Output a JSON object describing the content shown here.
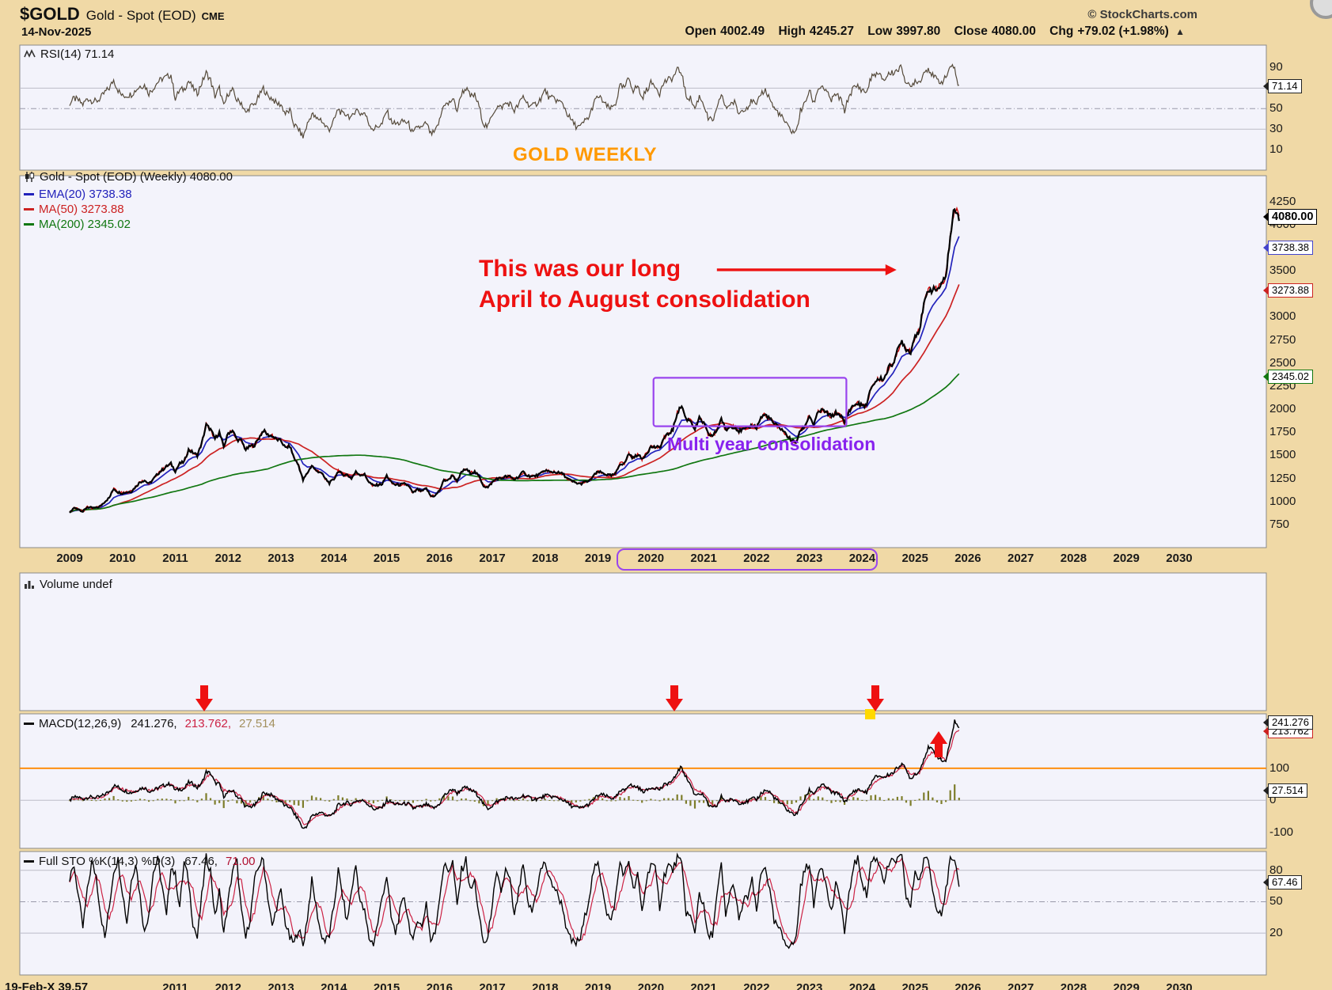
{
  "header": {
    "symbol": "$GOLD",
    "name": "Gold - Spot (EOD)",
    "exchange": "CME",
    "credit": "© StockCharts.com",
    "date": "14-Nov-2025",
    "up_arrow": "▲",
    "quote": {
      "open_label": "Open",
      "open": "4002.49",
      "high_label": "High",
      "high": "4245.27",
      "low_label": "Low",
      "low": "3997.80",
      "close_label": "Close",
      "close": "4080.00",
      "chg_label": "Chg",
      "chg": "+79.02 (+1.98%)"
    }
  },
  "banner": "GOLD WEEKLY",
  "legends": {
    "rsi": "RSI(14) 71.14",
    "main_title": "Gold - Spot (EOD) (Weekly) 4080.00",
    "ema": "EMA(20) 3738.38",
    "ma50": "MA(50) 3273.88",
    "ma200": "MA(200) 2345.02",
    "volume": "Volume undef",
    "macd_name": "MACD(12,26,9)",
    "macd_v1": "241.276,",
    "macd_v2": "213.762,",
    "macd_v3": "27.514",
    "sto_name": "Full STO %K(14,3) %D(3)",
    "sto_v1": "67.46,",
    "sto_v2": "71.00"
  },
  "bottom_fragment": "19-Feb-X 39.57",
  "colors": {
    "background": "#f0d9a6",
    "panel": "#f3f3fb",
    "border": "#8a8a8a",
    "grid": "#bcbcc8",
    "rsi_line": "#554a3a",
    "price": "#000000",
    "price_down": "#cc0000",
    "ema20": "#2222bb",
    "ma50": "#cc2222",
    "ma200": "#117711",
    "macd_line": "#000000",
    "macd_signal": "#cc2244",
    "macd_hist": "#7d7d2a",
    "sto_k": "#000000",
    "sto_d": "#cc2244",
    "orange_line": "#ff8800",
    "annotation_red": "#ee1111",
    "annotation_purple": "#9944ee",
    "banner_orange": "#ff9900",
    "yellow_mark": "#ffd900"
  },
  "chart_data": {
    "type": "line",
    "title": "Gold - Spot (EOD) (Weekly) 4080.00",
    "x_start": 2009.0,
    "x_step_months": 1,
    "x_axis_years": [
      "2009",
      "2010",
      "2011",
      "2012",
      "2013",
      "2014",
      "2015",
      "2016",
      "2017",
      "2018",
      "2019",
      "2020",
      "2021",
      "2022",
      "2023",
      "2024",
      "2025",
      "2026",
      "2027",
      "2028",
      "2029",
      "2030"
    ],
    "bottom_axis_years": [
      "2011",
      "2012",
      "2013",
      "2014",
      "2015",
      "2016",
      "2017",
      "2018",
      "2019",
      "2020",
      "2021",
      "2022",
      "2023",
      "2024",
      "2025",
      "2026",
      "2027",
      "2028",
      "2029",
      "2030"
    ],
    "panels": {
      "rsi": {
        "type": "line",
        "name": "RSI(14)",
        "current": 71.14,
        "ylim": [
          -10,
          112
        ],
        "gridlines": [
          {
            "v": 30
          },
          {
            "v": 50,
            "dash": true
          },
          {
            "v": 70
          }
        ],
        "right_labels": [
          {
            "t": "90",
            "v": 90
          },
          {
            "t": "71.14",
            "v": 71.14,
            "tag": "black"
          },
          {
            "t": "50",
            "v": 50
          },
          {
            "t": "30",
            "v": 30
          },
          {
            "t": "10",
            "v": 10
          }
        ],
        "values": [
          55,
          60,
          58,
          54,
          60,
          58,
          57,
          60,
          66,
          70,
          78,
          68,
          62,
          63,
          64,
          68,
          72,
          73,
          65,
          70,
          76,
          79,
          81,
          83,
          60,
          68,
          69,
          77,
          70,
          65,
          75,
          85,
          78,
          62,
          70,
          52,
          65,
          68,
          58,
          56,
          45,
          52,
          54,
          62,
          70,
          62,
          60,
          55,
          54,
          45,
          48,
          34,
          30,
          22,
          35,
          45,
          40,
          40,
          33,
          30,
          38,
          50,
          44,
          45,
          40,
          50,
          45,
          46,
          35,
          30,
          33,
          35,
          48,
          38,
          35,
          36,
          38,
          35,
          25,
          33,
          31,
          36,
          25,
          27,
          38,
          55,
          54,
          60,
          48,
          65,
          70,
          62,
          63,
          52,
          35,
          32,
          45,
          52,
          51,
          55,
          55,
          48,
          54,
          62,
          55,
          52,
          55,
          60,
          68,
          60,
          60,
          57,
          55,
          45,
          38,
          33,
          32,
          38,
          42,
          55,
          62,
          58,
          52,
          50,
          55,
          72,
          70,
          80,
          68,
          72,
          60,
          68,
          75,
          73,
          65,
          76,
          78,
          80,
          88,
          85,
          62,
          60,
          50,
          62,
          55,
          40,
          38,
          48,
          65,
          50,
          55,
          56,
          45,
          50,
          52,
          58,
          52,
          65,
          68,
          60,
          50,
          46,
          40,
          33,
          28,
          27,
          48,
          55,
          68,
          55,
          70,
          72,
          65,
          58,
          64,
          60,
          48,
          62,
          70,
          72,
          68,
          66,
          80,
          84,
          82,
          78,
          84,
          85,
          88,
          90,
          75,
          70,
          78,
          76,
          85,
          90,
          82,
          78,
          76,
          80,
          92,
          88,
          71
        ]
      },
      "price": {
        "type": "candlestick",
        "name": "Gold - Spot (EOD) (Weekly)",
        "close_current": 4080.0,
        "ylim": [
          500,
          4530
        ],
        "close": [
          880,
          930,
          920,
          890,
          940,
          930,
          930,
          950,
          1000,
          1040,
          1140,
          1100,
          1090,
          1100,
          1110,
          1160,
          1210,
          1230,
          1190,
          1240,
          1300,
          1340,
          1380,
          1410,
          1330,
          1410,
          1430,
          1560,
          1530,
          1500,
          1630,
          1830,
          1780,
          1680,
          1750,
          1590,
          1740,
          1770,
          1670,
          1660,
          1560,
          1600,
          1610,
          1690,
          1770,
          1720,
          1710,
          1670,
          1660,
          1580,
          1600,
          1470,
          1390,
          1230,
          1310,
          1390,
          1330,
          1320,
          1250,
          1200,
          1240,
          1330,
          1290,
          1290,
          1250,
          1320,
          1290,
          1290,
          1210,
          1170,
          1180,
          1190,
          1280,
          1210,
          1180,
          1180,
          1190,
          1170,
          1090,
          1130,
          1110,
          1140,
          1060,
          1060,
          1120,
          1230,
          1230,
          1290,
          1210,
          1320,
          1350,
          1310,
          1320,
          1270,
          1170,
          1150,
          1210,
          1250,
          1250,
          1270,
          1270,
          1240,
          1270,
          1320,
          1280,
          1270,
          1280,
          1300,
          1340,
          1320,
          1320,
          1310,
          1300,
          1250,
          1220,
          1200,
          1190,
          1210,
          1220,
          1280,
          1320,
          1310,
          1290,
          1280,
          1300,
          1410,
          1410,
          1520,
          1470,
          1510,
          1460,
          1520,
          1590,
          1590,
          1580,
          1690,
          1730,
          1780,
          1960,
          2040,
          1890,
          1880,
          1780,
          1900,
          1850,
          1730,
          1710,
          1770,
          1900,
          1770,
          1810,
          1810,
          1760,
          1780,
          1790,
          1830,
          1800,
          1910,
          1940,
          1900,
          1840,
          1810,
          1770,
          1710,
          1660,
          1640,
          1770,
          1820,
          1930,
          1830,
          1970,
          1990,
          1960,
          1920,
          1960,
          1940,
          1850,
          1980,
          2040,
          2060,
          2040,
          2040,
          2230,
          2300,
          2330,
          2330,
          2450,
          2500,
          2630,
          2740,
          2650,
          2620,
          2800,
          2860,
          3120,
          3300,
          3290,
          3300,
          3340,
          3450,
          3860,
          4200,
          4080
        ],
        "overlays": [
          {
            "name": "EMA(20)",
            "value": 3738.38,
            "method": "ema",
            "span": 4.6,
            "color_key": "ema20"
          },
          {
            "name": "MA(50)",
            "value": 3273.88,
            "method": "sma",
            "window": 12,
            "color_key": "ma50"
          },
          {
            "name": "MA(200)",
            "value": 2345.02,
            "method": "sma",
            "window": 46,
            "color_key": "ma200"
          }
        ],
        "right_labels": [
          {
            "t": "4250",
            "v": 4250
          },
          {
            "t": "4000",
            "v": 4000
          },
          {
            "t": "3500",
            "v": 3500
          },
          {
            "t": "3000",
            "v": 3000
          },
          {
            "t": "2750",
            "v": 2750
          },
          {
            "t": "2500",
            "v": 2500
          },
          {
            "t": "2250",
            "v": 2250
          },
          {
            "t": "2000",
            "v": 2000
          },
          {
            "t": "1750",
            "v": 1750
          },
          {
            "t": "1500",
            "v": 1500
          },
          {
            "t": "1250",
            "v": 1250
          },
          {
            "t": "1000",
            "v": 1000
          },
          {
            "t": "750",
            "v": 750
          },
          {
            "t": "4080.00",
            "v": 4080,
            "tag": "bold"
          },
          {
            "t": "3738.38",
            "v": 3738.38,
            "tag": "blue"
          },
          {
            "t": "3273.88",
            "v": 3273.88,
            "tag": "red"
          },
          {
            "t": "2345.02",
            "v": 2345.02,
            "tag": "green"
          }
        ],
        "annotations": {
          "arrow": {
            "x1": 2021.25,
            "x2": 2024.65,
            "v": 3510
          },
          "box": {
            "x1": 2020.05,
            "x2": 2023.7,
            "v_top": 2340,
            "v_bottom": 1815
          },
          "axis_box": {
            "x1": 2019.35,
            "x2": 2024.3
          },
          "texts": {
            "red_line1": "This was our long",
            "red_line2": "April to August consolidation",
            "purple": "Multi year consolidation"
          }
        }
      },
      "volume": {
        "type": "none",
        "name": "Volume",
        "value_text": "undef"
      },
      "macd": {
        "type": "macd",
        "name": "MACD(12,26,9)",
        "current": [
          241.276,
          213.762,
          27.514
        ],
        "ylim": [
          -150,
          270
        ],
        "fast": 3.2,
        "slow": 7.5,
        "signal": 2.5,
        "scale": 0.75,
        "hist_scale": 1.3,
        "orange_level": 100,
        "gridlines": [
          {
            "v": 0
          }
        ],
        "right_labels": [
          {
            "t": "100",
            "v": 100
          },
          {
            "t": "0",
            "v": 0
          },
          {
            "t": "-100",
            "v": -100
          },
          {
            "t": "213.762",
            "v": 214,
            "tag": "red"
          },
          {
            "t": "241.276",
            "v": 241.3,
            "tag": "black"
          },
          {
            "t": "27.514",
            "v": 27.5,
            "tag": "black"
          }
        ],
        "arrows": [
          {
            "x": 2011.55,
            "dir": "down"
          },
          {
            "x": 2020.45,
            "dir": "down"
          },
          {
            "x": 2024.25,
            "dir": "down"
          },
          {
            "x": 2025.45,
            "dir": "up"
          }
        ],
        "yellow_mark": {
          "x": 2024.15
        }
      },
      "sto": {
        "type": "line2",
        "name": "Full STO %K(14,3) %D(3)",
        "current": [
          67.46,
          71.0
        ],
        "ylim": [
          -20,
          98
        ],
        "d_window": 3,
        "gridlines": [
          {
            "v": 20
          },
          {
            "v": 50,
            "dash": true
          },
          {
            "v": 80
          }
        ],
        "right_labels": [
          {
            "t": "80",
            "v": 80
          },
          {
            "t": "67.46",
            "v": 67.46,
            "tag": "black"
          },
          {
            "t": "50",
            "v": 50
          },
          {
            "t": "20",
            "v": 20
          }
        ],
        "values": [
          70,
          85,
          55,
          25,
          60,
          88,
          75,
          40,
          15,
          45,
          80,
          90,
          60,
          30,
          70,
          88,
          55,
          20,
          40,
          78,
          90,
          65,
          35,
          85,
          75,
          45,
          88,
          70,
          30,
          15,
          55,
          92,
          80,
          35,
          60,
          20,
          50,
          80,
          88,
          40,
          15,
          35,
          70,
          85,
          90,
          55,
          25,
          45,
          60,
          30,
          15,
          10,
          25,
          8,
          35,
          70,
          45,
          20,
          12,
          18,
          45,
          80,
          55,
          30,
          60,
          85,
          50,
          40,
          15,
          10,
          30,
          55,
          75,
          35,
          20,
          40,
          55,
          30,
          10,
          35,
          25,
          50,
          12,
          20,
          55,
          85,
          80,
          88,
          45,
          80,
          90,
          60,
          70,
          35,
          10,
          15,
          50,
          75,
          60,
          80,
          70,
          35,
          60,
          85,
          50,
          40,
          60,
          80,
          88,
          70,
          65,
          55,
          45,
          20,
          12,
          10,
          15,
          35,
          55,
          80,
          85,
          65,
          40,
          30,
          55,
          88,
          75,
          90,
          60,
          75,
          40,
          70,
          88,
          80,
          45,
          75,
          85,
          80,
          92,
          85,
          40,
          35,
          20,
          60,
          45,
          15,
          20,
          55,
          85,
          35,
          60,
          65,
          30,
          50,
          55,
          70,
          40,
          75,
          85,
          60,
          30,
          25,
          15,
          10,
          8,
          15,
          65,
          80,
          88,
          45,
          80,
          85,
          60,
          40,
          65,
          55,
          20,
          55,
          85,
          90,
          70,
          55,
          88,
          92,
          85,
          70,
          85,
          88,
          90,
          92,
          55,
          45,
          80,
          70,
          88,
          92,
          60,
          45,
          40,
          60,
          90,
          85,
          67
        ]
      }
    }
  }
}
